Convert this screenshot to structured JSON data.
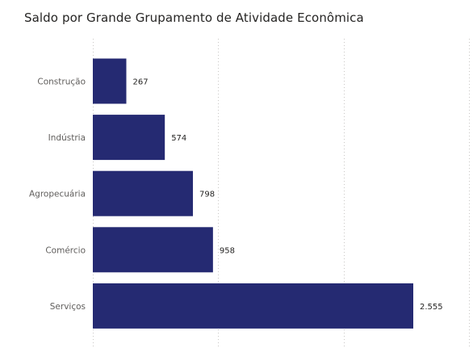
{
  "chart_data": {
    "type": "bar",
    "orientation": "horizontal",
    "title": "Saldo por Grande Grupamento de Atividade Econômica",
    "categories": [
      "Construção",
      "Indústria",
      "Agropecuária",
      "Comércio",
      "Serviços"
    ],
    "values": [
      267,
      574,
      798,
      958,
      2555
    ],
    "value_labels": [
      "267",
      "574",
      "798",
      "958",
      "2.555"
    ],
    "bar_color": "#252a72",
    "xlim": [
      0,
      3000
    ],
    "grid": true,
    "gridline_color": "#c8c6c4"
  }
}
